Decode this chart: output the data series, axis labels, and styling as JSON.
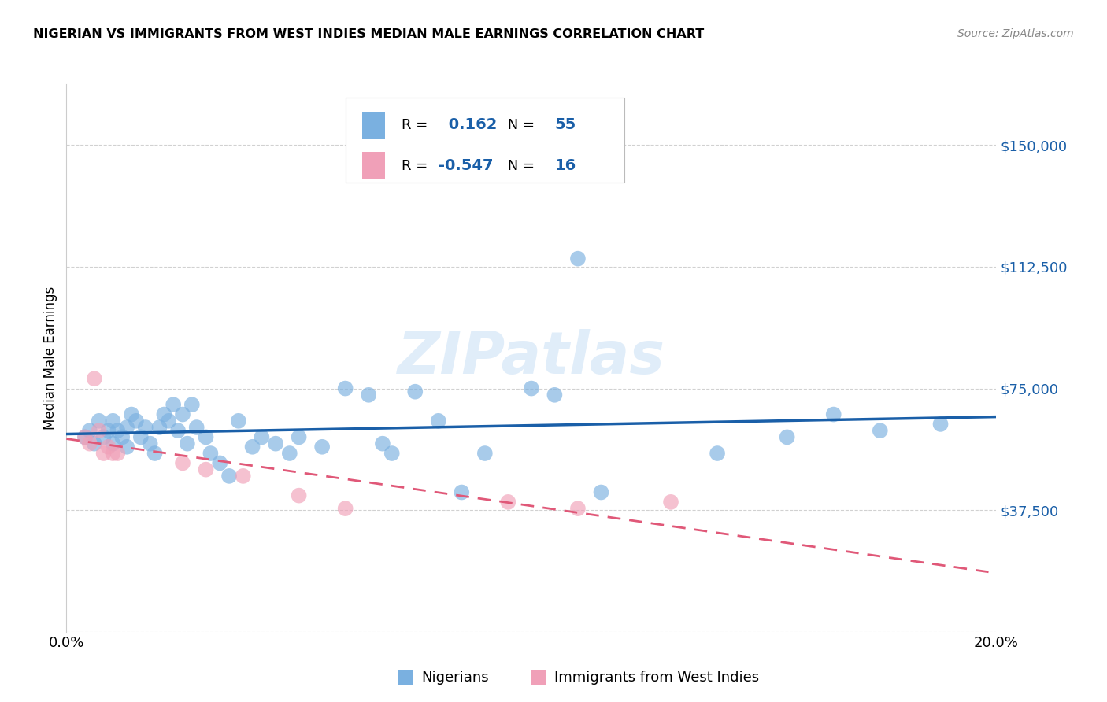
{
  "title": "NIGERIAN VS IMMIGRANTS FROM WEST INDIES MEDIAN MALE EARNINGS CORRELATION CHART",
  "source": "Source: ZipAtlas.com",
  "ylabel": "Median Male Earnings",
  "xlim": [
    0.0,
    0.2
  ],
  "ylim": [
    0,
    168750
  ],
  "yticks": [
    0,
    37500,
    75000,
    112500,
    150000
  ],
  "ytick_labels": [
    "",
    "$37,500",
    "$75,000",
    "$112,500",
    "$150,000"
  ],
  "xticks": [
    0.0,
    0.05,
    0.1,
    0.15,
    0.2
  ],
  "xtick_labels": [
    "0.0%",
    "",
    "",
    "",
    "20.0%"
  ],
  "blue_R": 0.162,
  "blue_N": 55,
  "pink_R": -0.547,
  "pink_N": 16,
  "blue_color": "#7ab0e0",
  "pink_color": "#f0a0b8",
  "blue_line_color": "#1a5fa8",
  "pink_line_color": "#e05878",
  "legend_label_blue": "Nigerians",
  "legend_label_pink": "Immigrants from West Indies",
  "watermark": "ZIPatlas",
  "blue_x": [
    0.004,
    0.005,
    0.006,
    0.007,
    0.008,
    0.009,
    0.01,
    0.01,
    0.011,
    0.012,
    0.013,
    0.013,
    0.014,
    0.015,
    0.016,
    0.017,
    0.018,
    0.019,
    0.02,
    0.021,
    0.022,
    0.023,
    0.024,
    0.025,
    0.026,
    0.027,
    0.028,
    0.03,
    0.031,
    0.033,
    0.035,
    0.037,
    0.04,
    0.042,
    0.045,
    0.048,
    0.05,
    0.055,
    0.06,
    0.065,
    0.068,
    0.07,
    0.075,
    0.08,
    0.085,
    0.09,
    0.1,
    0.105,
    0.11,
    0.115,
    0.14,
    0.155,
    0.165,
    0.175,
    0.188
  ],
  "blue_y": [
    60000,
    62000,
    58000,
    65000,
    60000,
    62000,
    65000,
    58000,
    62000,
    60000,
    63000,
    57000,
    67000,
    65000,
    60000,
    63000,
    58000,
    55000,
    63000,
    67000,
    65000,
    70000,
    62000,
    67000,
    58000,
    70000,
    63000,
    60000,
    55000,
    52000,
    48000,
    65000,
    57000,
    60000,
    58000,
    55000,
    60000,
    57000,
    75000,
    73000,
    58000,
    55000,
    74000,
    65000,
    43000,
    55000,
    75000,
    73000,
    115000,
    43000,
    55000,
    60000,
    67000,
    62000,
    64000
  ],
  "pink_x": [
    0.004,
    0.005,
    0.006,
    0.007,
    0.008,
    0.009,
    0.01,
    0.011,
    0.025,
    0.03,
    0.038,
    0.05,
    0.06,
    0.095,
    0.11,
    0.13
  ],
  "pink_y": [
    60000,
    58000,
    78000,
    62000,
    55000,
    57000,
    55000,
    55000,
    52000,
    50000,
    48000,
    42000,
    38000,
    40000,
    38000,
    40000
  ]
}
